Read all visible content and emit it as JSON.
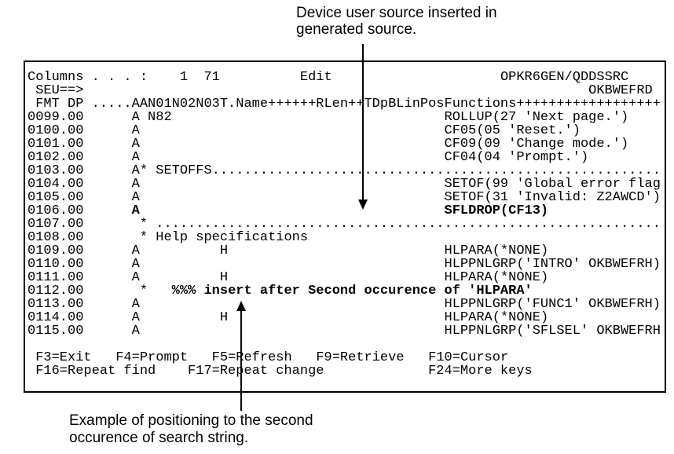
{
  "colors": {
    "ink": "#000000",
    "paper": "#ffffff"
  },
  "annotations": {
    "top": {
      "line1": "Device user source inserted in",
      "line2": "generated source."
    },
    "bottom": {
      "line1": "Example of positioning to the second",
      "line2": "occurence of search string."
    }
  },
  "terminal": {
    "header": {
      "columns_label": "Columns . . . :",
      "columns_from": "1",
      "columns_to": "71",
      "mode": "Edit",
      "object": "OPKR6GEN/QDDSSRC",
      "member": "OKBWEFRD",
      "command_prompt": "SEU==>",
      "format_line": "FMT DP .....AAN01N02N03T.Name++++++RLen++TDpBLinPosFunctions++++++++++++++++++"
    },
    "lines": [
      {
        "segments": [
          {
            "c": 1,
            "t": "Columns . . . :"
          },
          {
            "c": 20,
            "t": "1"
          },
          {
            "c": 23,
            "t": "71"
          },
          {
            "c": 35,
            "t": "Edit"
          },
          {
            "c": 60,
            "t": "OPKR6GEN/QDDSSRC"
          }
        ]
      },
      {
        "segments": [
          {
            "c": 2,
            "t": "SEU==>"
          },
          {
            "c": 71,
            "t": "OKBWEFRD"
          }
        ]
      },
      {
        "segments": [
          {
            "c": 2,
            "t": "FMT DP"
          },
          {
            "c": 9,
            "t": ".....AAN01N02N03T.Name++++++RLen++TDpBLinPosFunctions"
          },
          {
            "c": 62,
            "t": "+",
            "r": 18
          }
        ]
      },
      {
        "segments": [
          {
            "c": 1,
            "t": "0099.00"
          },
          {
            "c": 14,
            "t": "A"
          },
          {
            "c": 16,
            "t": "N82"
          },
          {
            "c": 53,
            "t": "ROLLUP(27 'Next page.')"
          }
        ]
      },
      {
        "segments": [
          {
            "c": 1,
            "t": "0100.00"
          },
          {
            "c": 14,
            "t": "A"
          },
          {
            "c": 53,
            "t": "CF05(05 'Reset.')"
          }
        ]
      },
      {
        "segments": [
          {
            "c": 1,
            "t": "0101.00"
          },
          {
            "c": 14,
            "t": "A"
          },
          {
            "c": 53,
            "t": "CF09(09 'Change mode.')"
          }
        ]
      },
      {
        "segments": [
          {
            "c": 1,
            "t": "0102.00"
          },
          {
            "c": 14,
            "t": "A"
          },
          {
            "c": 53,
            "t": "CF04(04 'Prompt.')"
          }
        ]
      },
      {
        "segments": [
          {
            "c": 1,
            "t": "0103.00"
          },
          {
            "c": 14,
            "t": "A*"
          },
          {
            "c": 17,
            "t": "SETOFFS"
          },
          {
            "c": 24,
            "t": ".",
            "r": 56
          }
        ]
      },
      {
        "segments": [
          {
            "c": 1,
            "t": "0104.00"
          },
          {
            "c": 14,
            "t": "A"
          },
          {
            "c": 53,
            "t": "SETOF(99 'Global error flag"
          }
        ]
      },
      {
        "segments": [
          {
            "c": 1,
            "t": "0105.00"
          },
          {
            "c": 14,
            "t": "A"
          },
          {
            "c": 53,
            "t": "SETOF(31 'Invalid: Z2AWCD')"
          }
        ]
      },
      {
        "segments": [
          {
            "c": 1,
            "t": "0106.00"
          },
          {
            "c": 14,
            "t": "A",
            "b": true
          },
          {
            "c": 53,
            "t": "SFLDROP(CF13)",
            "b": true
          }
        ]
      },
      {
        "segments": [
          {
            "c": 1,
            "t": "0107.00"
          },
          {
            "c": 15,
            "t": "*"
          },
          {
            "c": 17,
            "t": ".",
            "r": 63
          }
        ]
      },
      {
        "segments": [
          {
            "c": 1,
            "t": "0108.00"
          },
          {
            "c": 15,
            "t": "*"
          },
          {
            "c": 17,
            "t": "Help specifications"
          }
        ]
      },
      {
        "segments": [
          {
            "c": 1,
            "t": "0109.00"
          },
          {
            "c": 14,
            "t": "A"
          },
          {
            "c": 25,
            "t": "H"
          },
          {
            "c": 53,
            "t": "HLPARA(*NONE)"
          }
        ]
      },
      {
        "segments": [
          {
            "c": 1,
            "t": "0110.00"
          },
          {
            "c": 14,
            "t": "A"
          },
          {
            "c": 53,
            "t": "HLPPNLGRP('INTRO' OKBWEFRH)"
          }
        ]
      },
      {
        "segments": [
          {
            "c": 1,
            "t": "0111.00"
          },
          {
            "c": 14,
            "t": "A"
          },
          {
            "c": 25,
            "t": "H"
          },
          {
            "c": 53,
            "t": "HLPARA(*NONE)"
          }
        ]
      },
      {
        "segments": [
          {
            "c": 1,
            "t": "0112.00"
          },
          {
            "c": 15,
            "t": "*"
          },
          {
            "c": 19,
            "t": "%%% insert after Second occurence of 'HLPARA'",
            "b": true
          }
        ]
      },
      {
        "segments": [
          {
            "c": 1,
            "t": "0113.00"
          },
          {
            "c": 14,
            "t": "A"
          },
          {
            "c": 53,
            "t": "HLPPNLGRP('FUNC1' OKBWEFRH)"
          }
        ]
      },
      {
        "segments": [
          {
            "c": 1,
            "t": "0114.00"
          },
          {
            "c": 14,
            "t": "A"
          },
          {
            "c": 25,
            "t": "H"
          },
          {
            "c": 53,
            "t": "HLPARA(*NONE)"
          }
        ]
      },
      {
        "segments": [
          {
            "c": 1,
            "t": "0115.00"
          },
          {
            "c": 14,
            "t": "A"
          },
          {
            "c": 53,
            "t": "HLPPNLGRP('SFLSEL' OKBWEFRH"
          }
        ]
      },
      {
        "segments": []
      },
      {
        "segments": [
          {
            "c": 2,
            "t": "F3=Exit"
          },
          {
            "c": 12,
            "t": "F4=Prompt"
          },
          {
            "c": 24,
            "t": "F5=Refresh"
          },
          {
            "c": 37,
            "t": "F9=Retrieve"
          },
          {
            "c": 51,
            "t": "F10=Cursor"
          }
        ]
      },
      {
        "segments": [
          {
            "c": 2,
            "t": "F16=Repeat find"
          },
          {
            "c": 21,
            "t": "F17=Repeat change"
          },
          {
            "c": 51,
            "t": "F24=More keys"
          }
        ]
      }
    ],
    "function_keys": [
      "F3=Exit",
      "F4=Prompt",
      "F5=Refresh",
      "F9=Retrieve",
      "F10=Cursor",
      "F16=Repeat find",
      "F17=Repeat change",
      "F24=More keys"
    ]
  }
}
